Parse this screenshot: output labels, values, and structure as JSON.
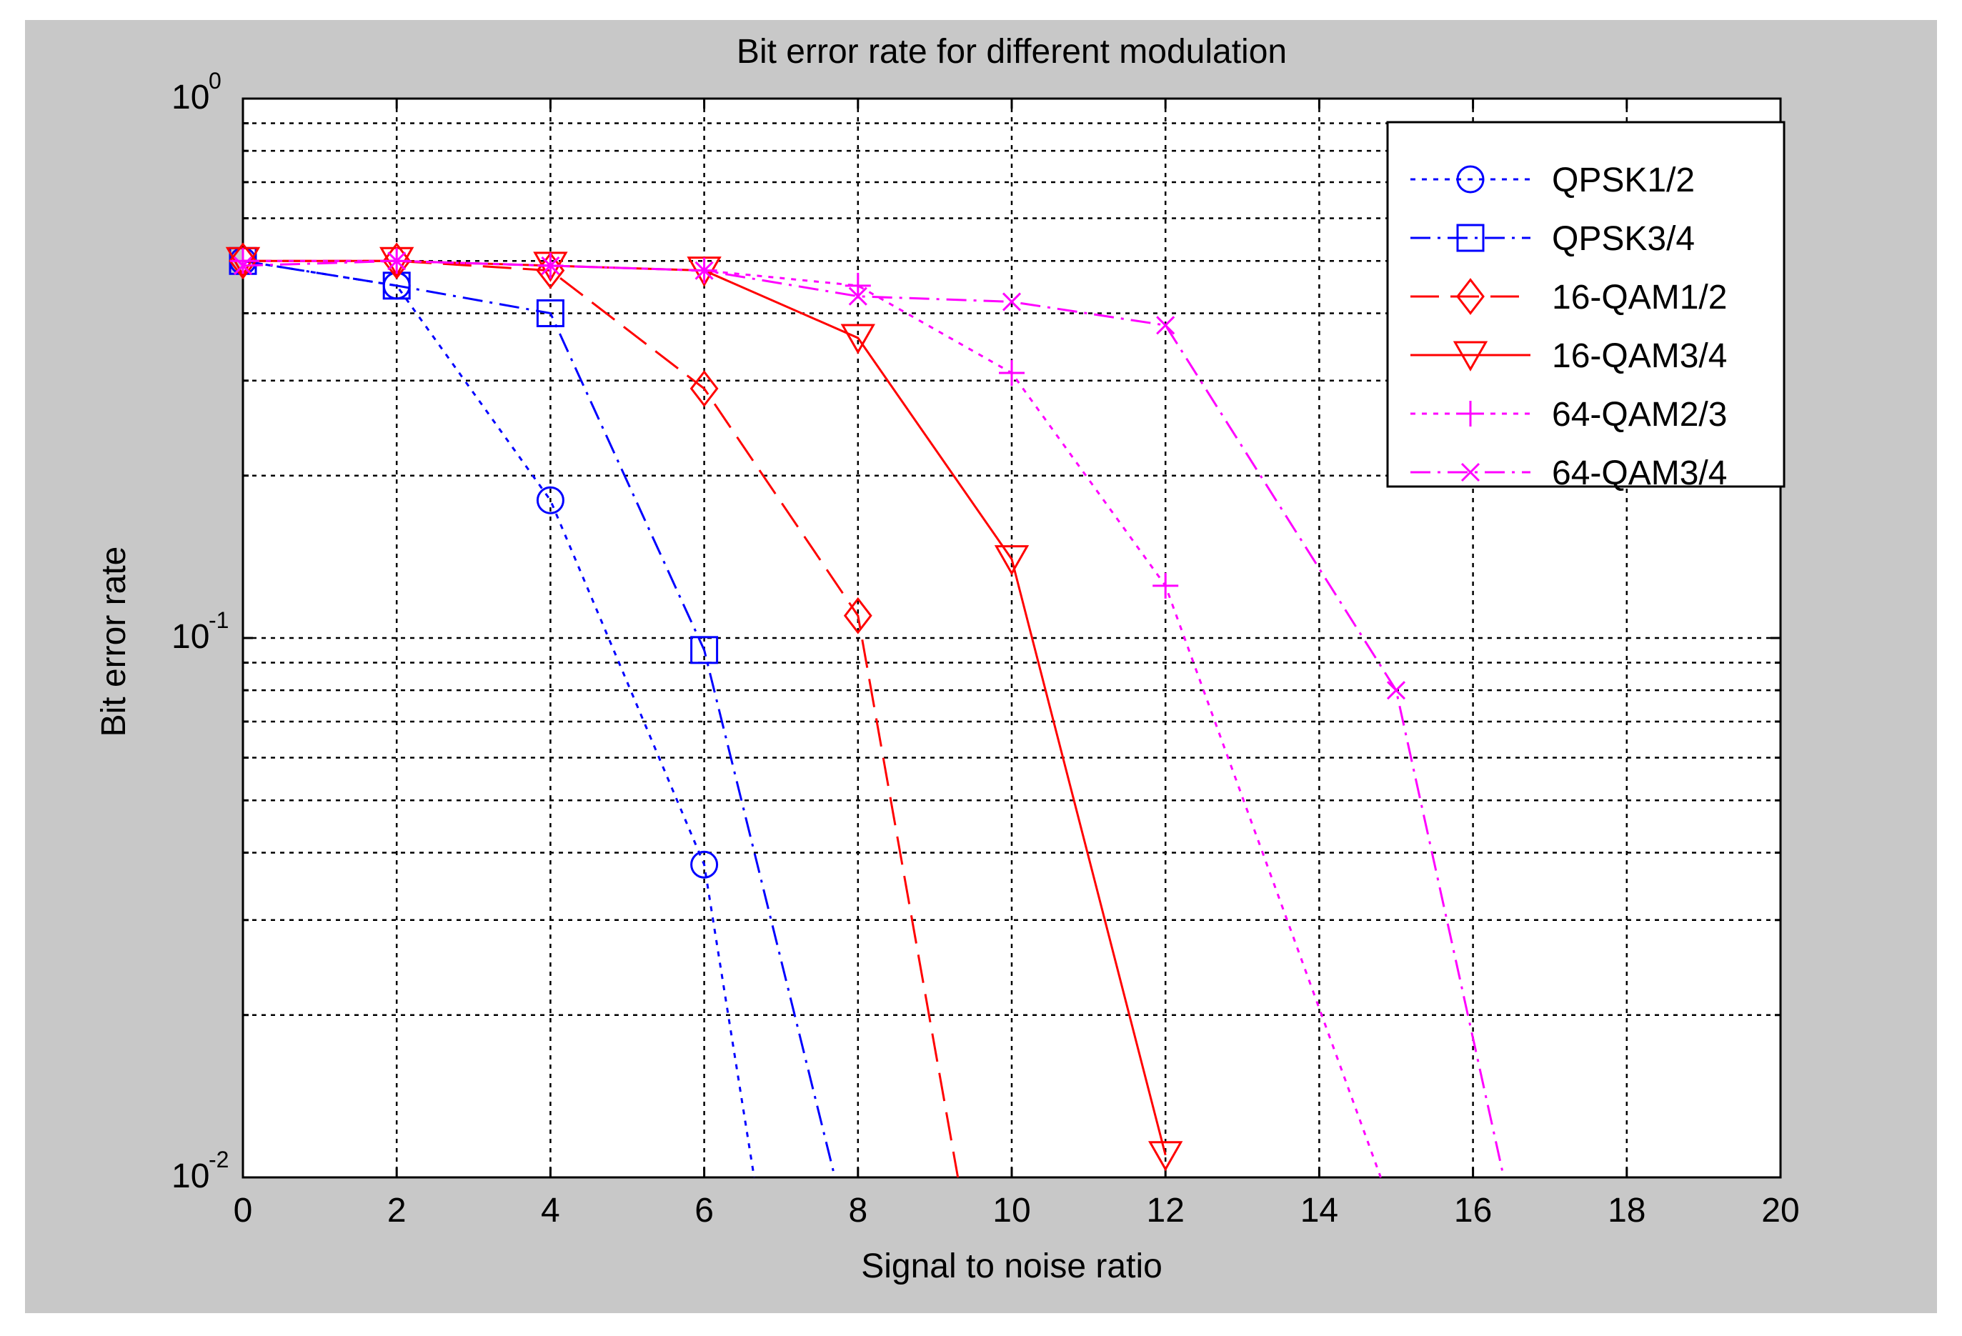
{
  "chart_data": {
    "type": "line",
    "title": "Bit error rate for different modulation",
    "xlabel": "Signal to noise ratio",
    "ylabel": "Bit error rate",
    "xlim": [
      0,
      20
    ],
    "ylim": [
      0.01,
      1
    ],
    "yscale": "log",
    "grid": true,
    "legend_position": "top-right",
    "x_ticks": [
      "0",
      "2",
      "4",
      "6",
      "8",
      "10",
      "12",
      "14",
      "16",
      "18",
      "20"
    ],
    "y_ticks": [
      {
        "base": "10",
        "exp": "-2"
      },
      {
        "base": "10",
        "exp": "-1"
      },
      {
        "base": "10",
        "exp": "0"
      }
    ],
    "series": [
      {
        "name": "QPSK1/2",
        "color": "#0000ff",
        "dash": "dotted",
        "marker": "circle",
        "x": [
          0,
          2,
          4,
          6,
          6.65
        ],
        "y": [
          0.5,
          0.45,
          0.18,
          0.038,
          0.01
        ]
      },
      {
        "name": "QPSK3/4",
        "color": "#0000ff",
        "dash": "dashdot",
        "marker": "square",
        "x": [
          0,
          2,
          4,
          6,
          7.7
        ],
        "y": [
          0.5,
          0.45,
          0.4,
          0.095,
          0.01
        ]
      },
      {
        "name": "16-QAM1/2",
        "color": "#ff0000",
        "dash": "longdash",
        "marker": "diamond",
        "x": [
          0,
          2,
          4,
          6,
          8,
          9.3
        ],
        "y": [
          0.5,
          0.5,
          0.48,
          0.29,
          0.11,
          0.01
        ]
      },
      {
        "name": "16-QAM3/4",
        "color": "#ff0000",
        "dash": "solid",
        "marker": "triangle-down",
        "x": [
          0,
          2,
          4,
          6,
          8,
          10,
          12
        ],
        "y": [
          0.5,
          0.5,
          0.49,
          0.48,
          0.36,
          0.14,
          0.011
        ]
      },
      {
        "name": "64-QAM2/3",
        "color": "#ff00ff",
        "dash": "dotted",
        "marker": "plus",
        "x": [
          0,
          2,
          4,
          6,
          8,
          10,
          12,
          14.8
        ],
        "y": [
          0.5,
          0.5,
          0.49,
          0.48,
          0.45,
          0.31,
          0.125,
          0.01
        ]
      },
      {
        "name": "64-QAM3/4",
        "color": "#ff00ff",
        "dash": "dashdot",
        "marker": "x",
        "x": [
          0,
          2,
          4,
          6,
          8,
          10,
          12,
          15,
          16.4
        ],
        "y": [
          0.49,
          0.5,
          0.49,
          0.48,
          0.43,
          0.42,
          0.38,
          0.08,
          0.01
        ]
      }
    ]
  }
}
